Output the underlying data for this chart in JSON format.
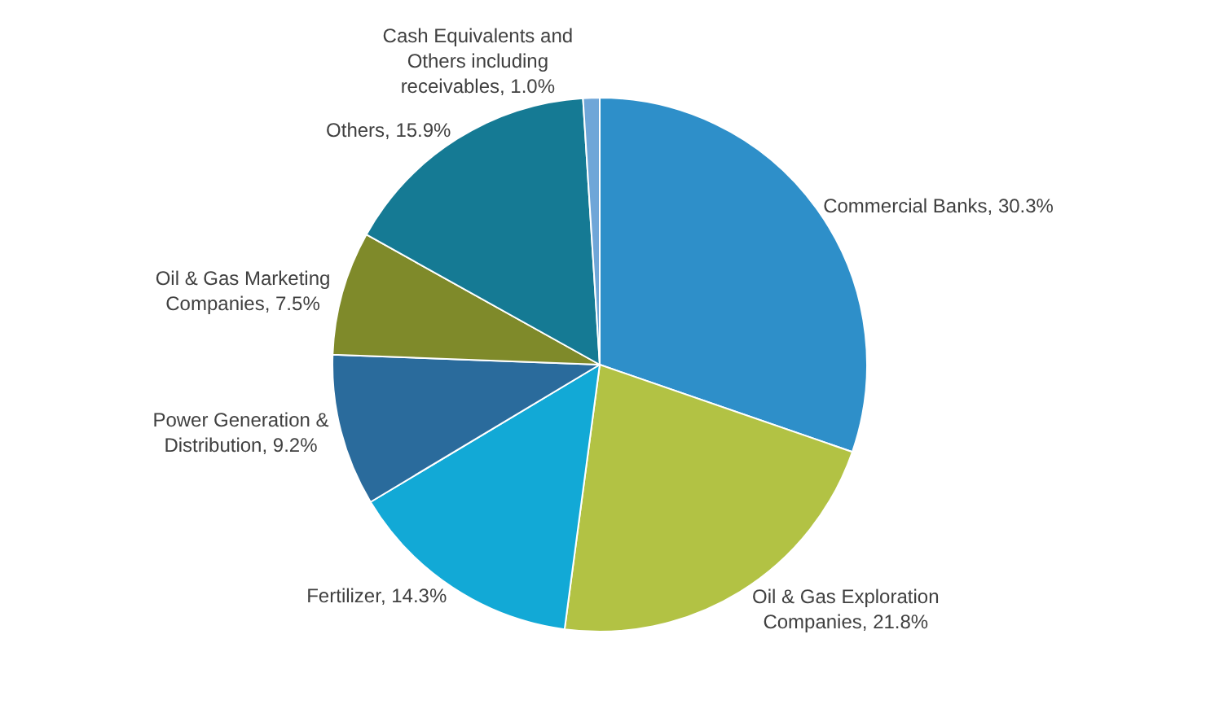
{
  "chart_data": {
    "type": "pie",
    "categories": [
      "Commercial Banks",
      "Oil & Gas Exploration Companies",
      "Fertilizer",
      "Power Generation & Distribution",
      "Oil & Gas Marketing Companies",
      "Others",
      "Cash Equivalents and Others including receivables"
    ],
    "values": [
      30.3,
      21.8,
      14.3,
      9.2,
      7.5,
      15.9,
      1.0
    ],
    "colors": [
      "#2e8fc9",
      "#b2c244",
      "#12a9d6",
      "#2a6b9c",
      "#7f8a2a",
      "#157a94",
      "#6fa6d8"
    ],
    "value_labels": [
      "30.3%",
      "21.8%",
      "14.3%",
      "9.2%",
      "7.5%",
      "15.9%",
      "1.0%"
    ],
    "legend": false
  }
}
